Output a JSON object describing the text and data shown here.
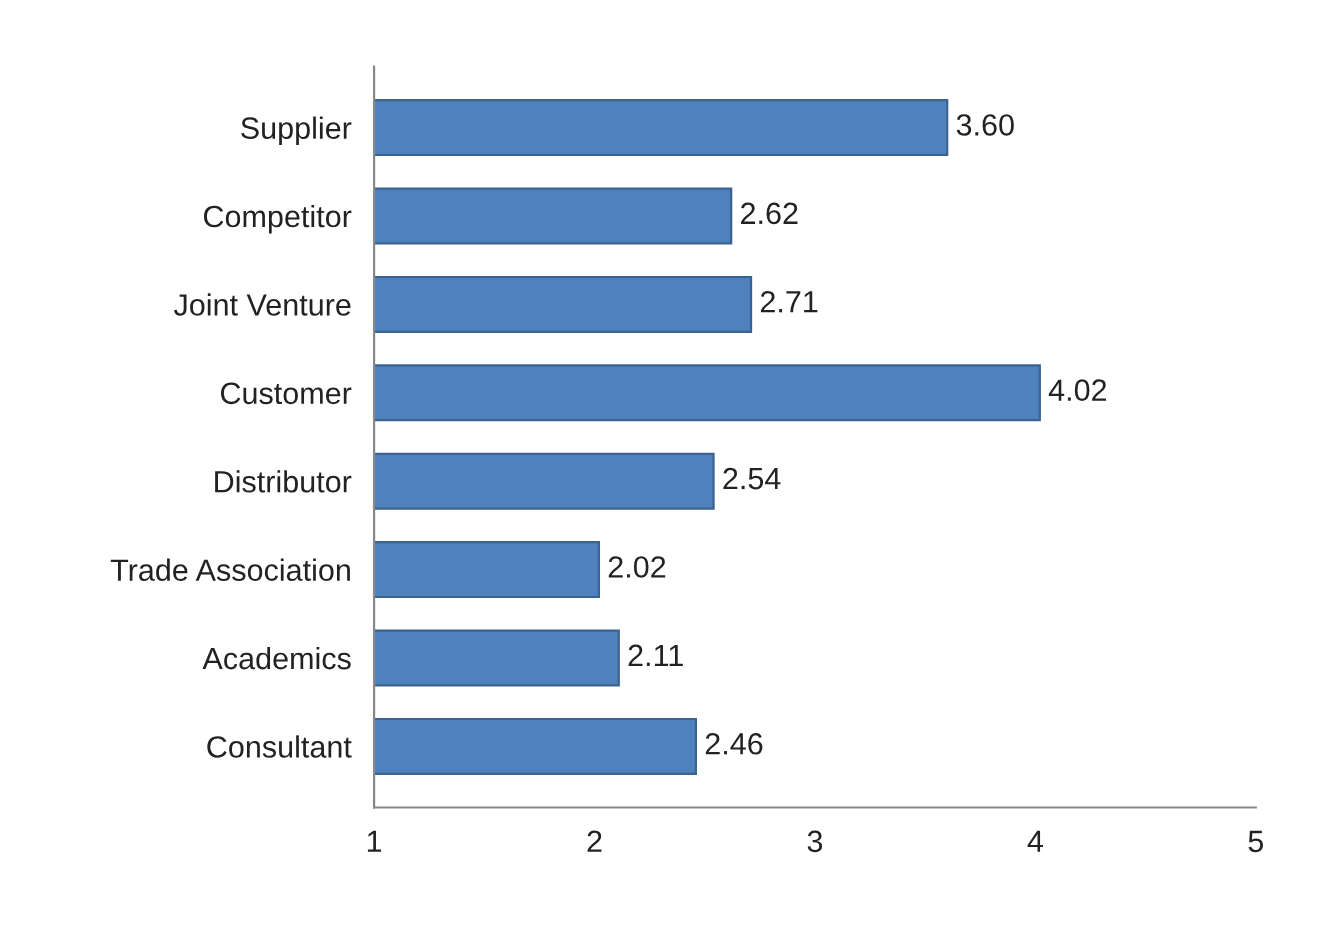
{
  "chart_data": {
    "type": "bar",
    "orientation": "horizontal",
    "categories": [
      "Supplier",
      "Competitor",
      "Joint Venture",
      "Customer",
      "Distributor",
      "Trade Association",
      "Academics",
      "Consultant"
    ],
    "values": [
      3.6,
      2.62,
      2.71,
      4.02,
      2.54,
      2.02,
      2.11,
      2.46
    ],
    "value_labels": [
      "3.60",
      "2.62",
      "2.71",
      "4.02",
      "2.54",
      "2.02",
      "2.11",
      "2.46"
    ],
    "color": "#4f81bd",
    "xlim": [
      1,
      5
    ],
    "xticks": [
      1,
      2,
      3,
      4,
      5
    ],
    "grid": false,
    "legend": false
  }
}
